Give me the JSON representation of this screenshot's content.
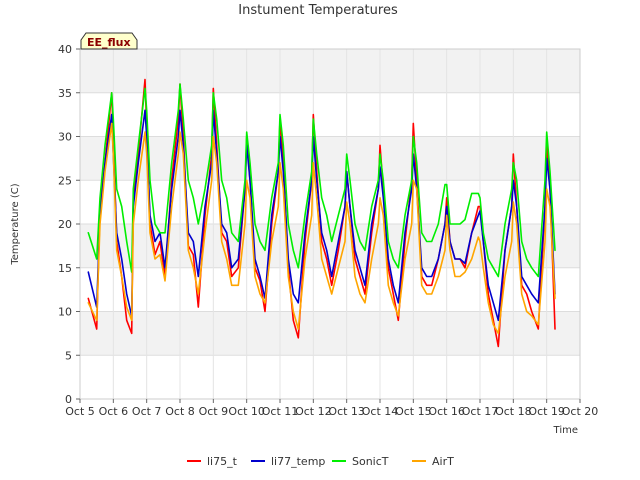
{
  "chart_data": {
    "type": "line",
    "title": "Instument Temperatures",
    "badge": "EE_flux",
    "xlabel": "Time",
    "ylabel": "Temperature (C)",
    "ylim": [
      0,
      40
    ],
    "yticks": [
      0,
      5,
      10,
      15,
      20,
      25,
      30,
      35,
      40
    ],
    "xlim": [
      5,
      20
    ],
    "xticks": [
      5,
      6,
      7,
      8,
      9,
      10,
      11,
      12,
      13,
      14,
      15,
      16,
      17,
      18,
      19,
      20
    ],
    "xtick_labels": [
      "Oct 5",
      "Oct 6",
      "Oct 7",
      "Oct 8",
      "Oct 9",
      "Oct 10",
      "Oct 11",
      "Oct 12",
      "Oct 13",
      "Oct 14",
      "Oct 15",
      "Oct 16",
      "Oct 17",
      "Oct 18",
      "Oct 19",
      "Oct 20"
    ],
    "grid": true,
    "legend_position": "bottom",
    "series": [
      {
        "name": "li75_t",
        "color": "#ff0000",
        "x": [
          5.25,
          5.5,
          5.6,
          5.75,
          5.95,
          6.0,
          6.1,
          6.25,
          6.4,
          6.55,
          6.6,
          6.75,
          6.95,
          7.0,
          7.1,
          7.25,
          7.4,
          7.55,
          7.75,
          7.95,
          8.0,
          8.1,
          8.25,
          8.4,
          8.55,
          8.75,
          8.95,
          9.0,
          9.1,
          9.25,
          9.4,
          9.55,
          9.75,
          9.95,
          10.0,
          10.1,
          10.25,
          10.4,
          10.55,
          10.75,
          10.95,
          11.0,
          11.1,
          11.25,
          11.4,
          11.55,
          11.75,
          11.95,
          12.0,
          12.1,
          12.25,
          12.4,
          12.55,
          12.75,
          12.95,
          13.0,
          13.1,
          13.25,
          13.4,
          13.55,
          13.75,
          13.95,
          14.0,
          14.1,
          14.25,
          14.4,
          14.55,
          14.75,
          14.95,
          15.0,
          15.1,
          15.25,
          15.4,
          15.55,
          15.75,
          15.95,
          16.0,
          16.1,
          16.25,
          16.4,
          16.55,
          16.75,
          16.95,
          17.0,
          17.1,
          17.25,
          17.4,
          17.55,
          17.75,
          17.95,
          18.0,
          18.1,
          18.25,
          18.4,
          18.55,
          18.75,
          18.95,
          19.0,
          19.1,
          19.25
        ],
        "y": [
          11.5,
          8.0,
          22.0,
          27.0,
          35.0,
          30.0,
          18.0,
          14.0,
          9.0,
          7.5,
          23.0,
          28.0,
          36.5,
          31.0,
          20.0,
          16.5,
          18.0,
          14.0,
          25.0,
          32.0,
          36.0,
          30.0,
          17.5,
          16.5,
          10.5,
          21.0,
          28.0,
          35.5,
          29.0,
          19.0,
          18.0,
          14.0,
          15.0,
          24.0,
          30.0,
          25.0,
          15.0,
          13.5,
          10.0,
          20.0,
          26.0,
          32.0,
          27.0,
          15.0,
          9.0,
          7.0,
          18.0,
          25.0,
          32.5,
          26.0,
          18.0,
          16.0,
          13.0,
          17.0,
          22.0,
          26.0,
          22.0,
          16.0,
          14.0,
          12.0,
          19.0,
          24.0,
          29.0,
          24.0,
          15.0,
          12.0,
          9.0,
          18.0,
          25.0,
          31.5,
          25.0,
          14.0,
          13.0,
          13.0,
          16.0,
          20.0,
          23.0,
          18.0,
          16.0,
          16.0,
          15.0,
          19.0,
          22.0,
          22.0,
          18.0,
          12.0,
          9.0,
          6.0,
          17.0,
          22.0,
          28.0,
          22.0,
          13.0,
          12.0,
          10.0,
          8.0,
          22.0,
          29.0,
          24.0,
          8.0
        ]
      },
      {
        "name": "li77_temp",
        "color": "#0000cc",
        "x": [
          5.25,
          5.5,
          5.6,
          5.75,
          5.95,
          6.0,
          6.1,
          6.25,
          6.4,
          6.55,
          6.6,
          6.75,
          6.95,
          7.0,
          7.1,
          7.25,
          7.4,
          7.55,
          7.75,
          7.95,
          8.0,
          8.1,
          8.25,
          8.4,
          8.55,
          8.75,
          8.95,
          9.0,
          9.1,
          9.25,
          9.4,
          9.55,
          9.75,
          9.95,
          10.0,
          10.1,
          10.25,
          10.4,
          10.55,
          10.75,
          10.95,
          11.0,
          11.1,
          11.25,
          11.4,
          11.55,
          11.75,
          11.95,
          12.0,
          12.1,
          12.25,
          12.4,
          12.55,
          12.75,
          12.95,
          13.0,
          13.1,
          13.25,
          13.4,
          13.55,
          13.75,
          13.95,
          14.0,
          14.1,
          14.25,
          14.4,
          14.55,
          14.75,
          14.95,
          15.0,
          15.1,
          15.25,
          15.4,
          15.55,
          15.75,
          15.95,
          16.0,
          16.1,
          16.25,
          16.4,
          16.55,
          16.75,
          16.95,
          17.0,
          17.1,
          17.25,
          17.4,
          17.55,
          17.75,
          17.95,
          18.0,
          18.1,
          18.25,
          18.4,
          18.55,
          18.75,
          18.95,
          19.0,
          19.1,
          19.25
        ],
        "y": [
          14.5,
          10.5,
          21.0,
          27.0,
          32.5,
          28.0,
          19.0,
          16.0,
          12.0,
          9.5,
          22.0,
          27.0,
          33.0,
          30.0,
          21.0,
          18.0,
          19.0,
          15.0,
          24.0,
          30.0,
          33.0,
          29.0,
          19.0,
          18.0,
          14.0,
          22.0,
          27.0,
          33.0,
          28.0,
          20.0,
          19.0,
          15.0,
          16.0,
          24.0,
          29.0,
          25.0,
          16.0,
          14.0,
          11.5,
          21.0,
          26.0,
          30.0,
          26.0,
          16.0,
          12.0,
          11.0,
          19.0,
          25.0,
          30.0,
          25.0,
          19.0,
          17.0,
          14.0,
          18.0,
          22.0,
          26.0,
          22.0,
          17.0,
          15.0,
          13.0,
          20.0,
          24.0,
          26.5,
          23.0,
          16.0,
          13.0,
          11.0,
          19.0,
          24.0,
          28.0,
          24.0,
          15.0,
          14.0,
          14.0,
          16.0,
          20.0,
          22.0,
          18.0,
          16.0,
          16.0,
          15.5,
          19.0,
          21.0,
          21.5,
          18.0,
          13.0,
          11.0,
          9.0,
          17.0,
          22.0,
          25.0,
          22.0,
          14.0,
          13.0,
          12.0,
          11.0,
          22.0,
          27.5,
          24.0,
          12.0
        ]
      },
      {
        "name": "SonicT",
        "color": "#00ee00",
        "x": [
          5.25,
          5.5,
          5.6,
          5.75,
          5.95,
          6.0,
          6.1,
          6.25,
          6.4,
          6.55,
          6.6,
          6.75,
          6.95,
          7.0,
          7.1,
          7.25,
          7.4,
          7.55,
          7.75,
          7.95,
          8.0,
          8.1,
          8.25,
          8.4,
          8.55,
          8.75,
          8.95,
          9.0,
          9.1,
          9.25,
          9.4,
          9.55,
          9.75,
          9.95,
          10.0,
          10.1,
          10.25,
          10.4,
          10.55,
          10.75,
          10.95,
          11.0,
          11.1,
          11.25,
          11.4,
          11.55,
          11.75,
          11.95,
          12.0,
          12.1,
          12.25,
          12.4,
          12.55,
          12.75,
          12.95,
          13.0,
          13.1,
          13.25,
          13.4,
          13.55,
          13.75,
          13.95,
          14.0,
          14.1,
          14.25,
          14.4,
          14.55,
          14.75,
          14.95,
          15.0,
          15.1,
          15.25,
          15.4,
          15.55,
          15.75,
          15.95,
          16.0,
          16.1,
          16.25,
          16.4,
          16.55,
          16.75,
          16.95,
          17.0,
          17.1,
          17.25,
          17.4,
          17.55,
          17.75,
          17.95,
          18.0,
          18.1,
          18.25,
          18.4,
          18.55,
          18.75,
          18.95,
          19.0,
          19.1,
          19.25
        ],
        "y": [
          19.0,
          16.0,
          23.0,
          29.0,
          35.0,
          32.0,
          24.0,
          22.0,
          18.0,
          14.5,
          24.0,
          29.0,
          35.5,
          33.0,
          25.0,
          20.0,
          19.0,
          19.0,
          27.0,
          33.0,
          36.0,
          32.0,
          25.0,
          23.0,
          20.0,
          24.0,
          29.0,
          35.0,
          32.0,
          25.0,
          23.0,
          19.0,
          18.0,
          25.0,
          30.5,
          27.0,
          20.0,
          18.0,
          17.0,
          23.0,
          27.0,
          32.5,
          29.0,
          20.0,
          17.0,
          15.0,
          21.0,
          26.0,
          32.0,
          28.0,
          23.0,
          21.0,
          18.0,
          21.0,
          24.0,
          28.0,
          25.0,
          20.0,
          18.0,
          17.0,
          22.0,
          25.0,
          28.0,
          25.0,
          18.0,
          16.0,
          15.0,
          21.0,
          25.0,
          30.0,
          27.0,
          19.0,
          18.0,
          18.0,
          20.0,
          24.5,
          24.5,
          20.0,
          20.0,
          20.0,
          20.5,
          23.5,
          23.5,
          23.0,
          19.0,
          16.0,
          15.0,
          14.0,
          20.0,
          24.0,
          27.0,
          25.0,
          18.0,
          16.0,
          15.0,
          14.0,
          25.0,
          30.5,
          26.0,
          17.0
        ]
      },
      {
        "name": "AirT",
        "color": "#ffa500",
        "x": [
          5.25,
          5.5,
          5.6,
          5.75,
          5.95,
          6.0,
          6.1,
          6.25,
          6.4,
          6.55,
          6.6,
          6.75,
          6.95,
          7.0,
          7.1,
          7.25,
          7.4,
          7.55,
          7.75,
          7.95,
          8.0,
          8.1,
          8.25,
          8.4,
          8.55,
          8.75,
          8.95,
          9.0,
          9.1,
          9.25,
          9.4,
          9.55,
          9.75,
          9.95,
          10.0,
          10.1,
          10.25,
          10.4,
          10.55,
          10.75,
          10.95,
          11.0,
          11.1,
          11.25,
          11.4,
          11.55,
          11.75,
          11.95,
          12.0,
          12.1,
          12.25,
          12.4,
          12.55,
          12.75,
          12.95,
          13.0,
          13.1,
          13.25,
          13.4,
          13.55,
          13.75,
          13.95,
          14.0,
          14.1,
          14.25,
          14.4,
          14.55,
          14.75,
          14.95,
          15.0,
          15.1,
          15.25,
          15.4,
          15.55,
          15.75,
          15.95,
          16.0,
          16.1,
          16.25,
          16.4,
          16.55,
          16.75,
          16.95,
          17.0,
          17.1,
          17.25,
          17.4,
          17.55,
          17.75,
          17.95,
          18.0,
          18.1,
          18.25,
          18.4,
          18.55,
          18.75,
          18.95,
          19.0,
          19.1,
          19.25
        ],
        "y": [
          11.0,
          9.0,
          20.0,
          26.0,
          31.5,
          28.0,
          17.0,
          14.0,
          10.5,
          9.0,
          20.0,
          25.0,
          30.5,
          28.0,
          19.0,
          16.0,
          16.5,
          13.5,
          22.0,
          28.0,
          30.5,
          28.0,
          17.0,
          15.0,
          12.0,
          19.0,
          25.0,
          30.0,
          27.0,
          18.0,
          16.0,
          13.0,
          13.0,
          20.0,
          25.0,
          23.0,
          14.0,
          12.0,
          11.0,
          18.0,
          22.0,
          27.0,
          24.0,
          14.0,
          10.0,
          8.0,
          16.0,
          21.0,
          27.0,
          23.0,
          16.0,
          14.0,
          12.0,
          15.0,
          18.0,
          22.5,
          20.0,
          14.0,
          12.0,
          11.0,
          16.0,
          20.0,
          23.0,
          21.0,
          13.0,
          11.0,
          9.5,
          16.0,
          20.0,
          25.0,
          24.0,
          13.0,
          12.0,
          12.0,
          14.0,
          17.0,
          21.0,
          17.0,
          14.0,
          14.0,
          14.5,
          16.0,
          18.5,
          18.0,
          15.0,
          11.0,
          8.5,
          7.5,
          14.0,
          18.0,
          22.5,
          20.0,
          12.0,
          10.0,
          9.5,
          8.5,
          18.0,
          24.0,
          22.0,
          11.5
        ]
      }
    ]
  }
}
